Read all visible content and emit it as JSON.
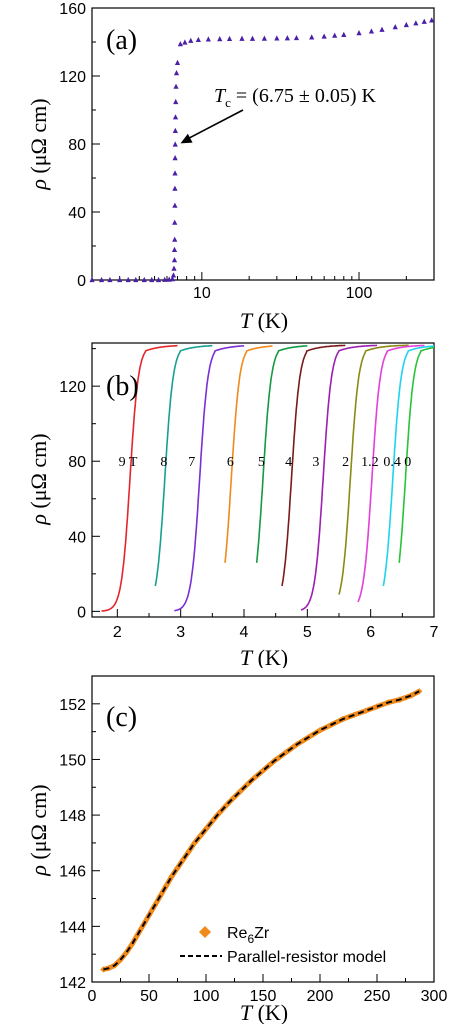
{
  "chart_data": [
    {
      "panel": "(a)",
      "type": "scatter",
      "x_scale": "log",
      "xlabel": {
        "symbol": "T",
        "unit": "(K)"
      },
      "ylabel": {
        "symbol": "ρ",
        "unit": "(μΩ cm)"
      },
      "xlim": [
        2,
        300
      ],
      "ylim": [
        0,
        160
      ],
      "xticks": [
        10,
        100
      ],
      "xtick_labels": [
        "10",
        "100"
      ],
      "yticks": [
        0,
        40,
        80,
        120,
        160
      ],
      "ytick_labels": [
        "0",
        "40",
        "80",
        "120",
        "160"
      ],
      "marker_color": "#4b1fa8",
      "annotation": {
        "symbol": "T",
        "subscript": "c",
        "text": " = (6.75 ± 0.05) K",
        "points_to": [
          6.9,
          78
        ]
      },
      "x": [
        2.0,
        2.3,
        2.6,
        3.0,
        3.4,
        3.8,
        4.3,
        4.8,
        5.3,
        5.8,
        6.2,
        6.5,
        6.6,
        6.65,
        6.7,
        6.7,
        6.72,
        6.72,
        6.74,
        6.74,
        6.75,
        6.76,
        6.77,
        6.78,
        6.8,
        6.82,
        6.85,
        6.9,
        7.0,
        7.3,
        7.8,
        8.5,
        9.5,
        11,
        13,
        15,
        18,
        21,
        25,
        30,
        35,
        40,
        50,
        60,
        70,
        80,
        100,
        120,
        140,
        170,
        200,
        230,
        260,
        290
      ],
      "y": [
        0.3,
        0.3,
        0.3,
        0.3,
        0.3,
        0.3,
        0.3,
        0.3,
        0.3,
        0.4,
        0.5,
        0.8,
        3,
        7,
        12,
        18,
        24,
        34,
        44,
        54,
        63,
        72,
        80,
        88,
        96,
        105,
        114,
        122,
        128,
        139,
        140,
        141,
        141.5,
        141.8,
        142,
        142.1,
        142.2,
        142.2,
        142.3,
        142.4,
        142.5,
        142.6,
        143,
        143.5,
        144,
        144.5,
        145.5,
        146.5,
        147.5,
        149,
        150.3,
        151.3,
        152.2,
        153
      ]
    },
    {
      "panel": "(b)",
      "type": "line",
      "xlabel": {
        "symbol": "T",
        "unit": "(K)"
      },
      "ylabel": {
        "symbol": "ρ",
        "unit": "(μΩ cm)"
      },
      "xlim": [
        1.6,
        7.0
      ],
      "ylim": [
        -3,
        143
      ],
      "xticks": [
        2,
        3,
        4,
        5,
        6,
        7
      ],
      "xtick_labels": [
        "2",
        "3",
        "4",
        "5",
        "6",
        "7"
      ],
      "yticks": [
        0,
        40,
        80,
        120
      ],
      "ytick_labels": [
        "0",
        "40",
        "80",
        "120"
      ],
      "curve_labels_y": 80,
      "series": [
        {
          "name": "9 T",
          "label": "9 T",
          "color": "#e3262b",
          "tc": 2.2,
          "x_start": 1.75,
          "x_end": 2.95,
          "label_x": 2.02
        },
        {
          "name": "8",
          "label": "8",
          "color": "#17a091",
          "tc": 2.75,
          "x_start": 2.6,
          "x_end": 3.5,
          "label_x": 2.68
        },
        {
          "name": "7",
          "label": "7",
          "color": "#7b2fd3",
          "tc": 3.3,
          "x_start": 2.9,
          "x_end": 4.0,
          "label_x": 3.12
        },
        {
          "name": "6",
          "label": "6",
          "color": "#f08a1b",
          "tc": 3.8,
          "x_start": 3.7,
          "x_end": 4.45,
          "label_x": 3.73
        },
        {
          "name": "5",
          "label": "5",
          "color": "#139a42",
          "tc": 4.3,
          "x_start": 4.2,
          "x_end": 5.0,
          "label_x": 4.22
        },
        {
          "name": "4",
          "label": "4",
          "color": "#7a1a1a",
          "tc": 4.75,
          "x_start": 4.6,
          "x_end": 5.6,
          "label_x": 4.65
        },
        {
          "name": "3",
          "label": "3",
          "color": "#9b1fb0",
          "tc": 5.25,
          "x_start": 4.9,
          "x_end": 6.1,
          "label_x": 5.08
        },
        {
          "name": "2",
          "label": "2",
          "color": "#8a8a14",
          "tc": 5.68,
          "x_start": 5.5,
          "x_end": 6.6,
          "label_x": 5.55
        },
        {
          "name": "1.2",
          "label": "1.2",
          "color": "#e43fd8",
          "tc": 6.02,
          "x_start": 5.8,
          "x_end": 6.85,
          "label_x": 5.85
        },
        {
          "name": "0.4",
          "label": "0.4",
          "color": "#1fd3f0",
          "tc": 6.35,
          "x_start": 6.2,
          "x_end": 7.0,
          "label_x": 6.2
        },
        {
          "name": "0",
          "label": "0",
          "color": "#27c43a",
          "tc": 6.55,
          "x_start": 6.45,
          "x_end": 7.0,
          "label_x": 6.53
        }
      ],
      "plateau": 142,
      "transition_width": 0.12
    },
    {
      "panel": "(c)",
      "type": "scatter",
      "xlabel": {
        "symbol": "T",
        "unit": "(K)"
      },
      "ylabel": {
        "symbol": "ρ",
        "unit": "(μΩ cm)"
      },
      "xlim": [
        0,
        300
      ],
      "ylim": [
        142,
        153
      ],
      "xticks": [
        0,
        50,
        100,
        150,
        200,
        250,
        300
      ],
      "xtick_labels": [
        "0",
        "50",
        "100",
        "150",
        "200",
        "250",
        "300"
      ],
      "yticks": [
        142,
        144,
        146,
        148,
        150,
        152
      ],
      "ytick_labels": [
        "142",
        "144",
        "146",
        "148",
        "150",
        "152"
      ],
      "legend": [
        {
          "marker": "diamond",
          "color": "#f08a1b",
          "prefix": "Re",
          "subscript": "6",
          "suffix": "Zr"
        },
        {
          "marker": "dashed-line",
          "color": "#000000",
          "text": "Parallel-resistor model"
        }
      ],
      "legend_placement": "bottom-right",
      "x": [
        10,
        15,
        20,
        25,
        30,
        35,
        40,
        45,
        50,
        55,
        60,
        65,
        70,
        75,
        80,
        85,
        90,
        95,
        100,
        110,
        120,
        130,
        140,
        150,
        160,
        170,
        180,
        190,
        200,
        210,
        220,
        230,
        240,
        250,
        260,
        270,
        280,
        287
      ],
      "y": [
        142.45,
        142.5,
        142.6,
        142.8,
        143.05,
        143.35,
        143.7,
        144.05,
        144.4,
        144.75,
        145.1,
        145.45,
        145.8,
        146.1,
        146.4,
        146.7,
        147.0,
        147.25,
        147.5,
        148.0,
        148.45,
        148.85,
        149.25,
        149.6,
        149.95,
        150.25,
        150.55,
        150.8,
        151.05,
        151.25,
        151.45,
        151.6,
        151.75,
        151.9,
        152.05,
        152.15,
        152.3,
        152.45
      ]
    }
  ]
}
